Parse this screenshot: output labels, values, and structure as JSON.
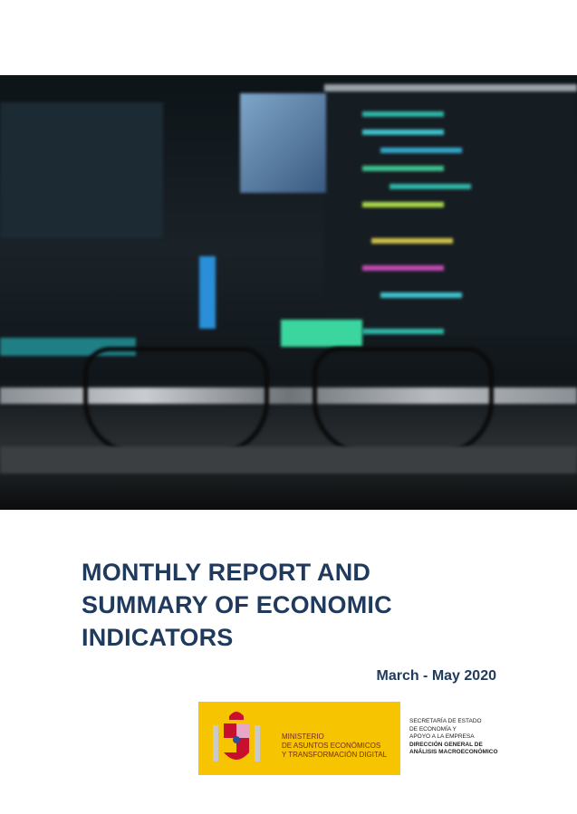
{
  "cover": {
    "image": "blurred computer monitors with code and eyeglasses",
    "title_lines": [
      "MONTHLY REPORT AND",
      "SUMMARY OF ECONOMIC",
      "INDICATORS"
    ],
    "date_range": "March - May 2020"
  },
  "logo": {
    "ministry_lines": [
      "MINISTERIO",
      "DE ASUNTOS ECONÓMICOS",
      "Y TRANSFORMACIÓN DIGITAL"
    ],
    "secretaria_lines": [
      "SECRETARÍA DE ESTADO",
      "DE ECONOMÍA Y",
      "APOYO A LA EMPRESA"
    ],
    "direccion_lines": [
      "DIRECCIÓN GENERAL DE",
      "ANÁLISIS MACROECONÓMICO"
    ],
    "colors": {
      "yellow": "#f6c400",
      "text": "#7a2a14"
    }
  },
  "colors": {
    "title": "#1f3a5c"
  }
}
